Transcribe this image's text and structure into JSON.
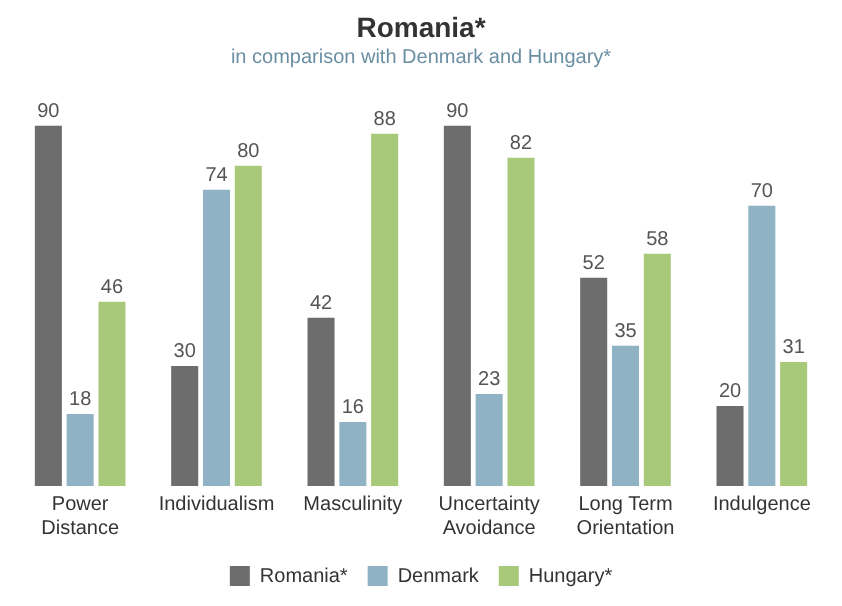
{
  "chart_data": {
    "type": "bar",
    "title": "Romania*",
    "subtitle": "in comparison with Denmark and Hungary*",
    "categories": [
      "Power Distance",
      "Individualism",
      "Masculinity",
      "Uncertainty Avoidance",
      "Long Term Orientation",
      "Indulgence"
    ],
    "series": [
      {
        "name": "Romania*",
        "color": "#6d6d6d",
        "values": [
          90,
          30,
          42,
          90,
          52,
          20
        ]
      },
      {
        "name": "Denmark",
        "color": "#8fb3c4",
        "values": [
          18,
          74,
          16,
          23,
          35,
          70
        ]
      },
      {
        "name": "Hungary*",
        "color": "#a8c97a",
        "values": [
          46,
          80,
          88,
          82,
          58,
          31
        ]
      }
    ],
    "data_labels": true,
    "legend": "bottom",
    "grid": false
  }
}
